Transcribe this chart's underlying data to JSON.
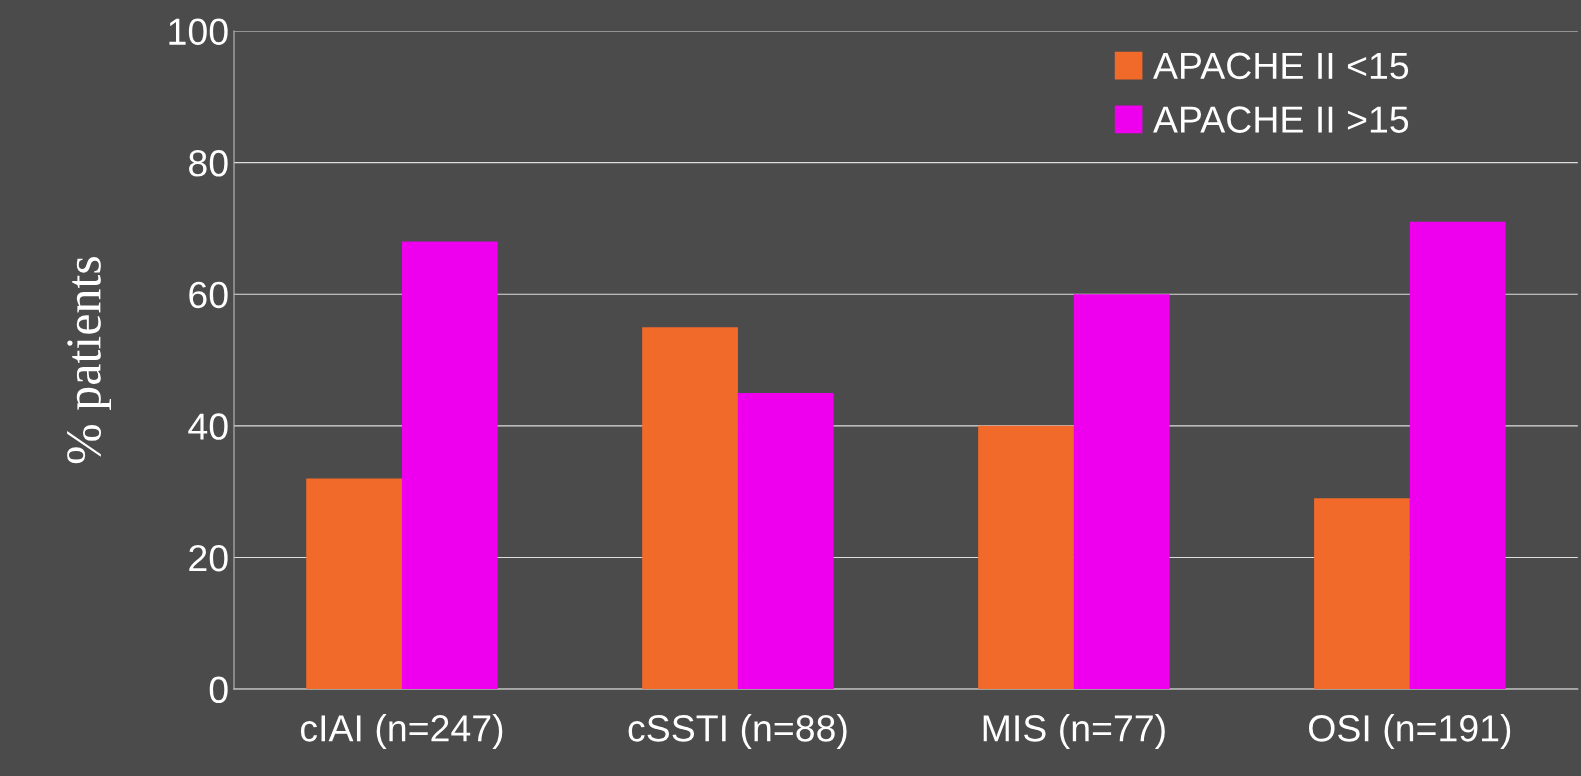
{
  "chart_data": {
    "type": "bar",
    "ylabel": "% patients",
    "categories": [
      "cIAI (n=247)",
      "cSSTI (n=88)",
      "MIS (n=77)",
      "OSI (n=191)"
    ],
    "series": [
      {
        "name": "APACHE II <15",
        "color": "#f26a2a",
        "values": [
          32,
          55,
          40,
          29
        ]
      },
      {
        "name": "APACHE II >15",
        "color": "#ee00ee",
        "values": [
          68,
          45,
          60,
          71
        ]
      }
    ],
    "ylim": [
      0,
      100
    ],
    "yticks": [
      0,
      20,
      40,
      60,
      80,
      100
    ],
    "grid": "y",
    "legend": "top right"
  }
}
